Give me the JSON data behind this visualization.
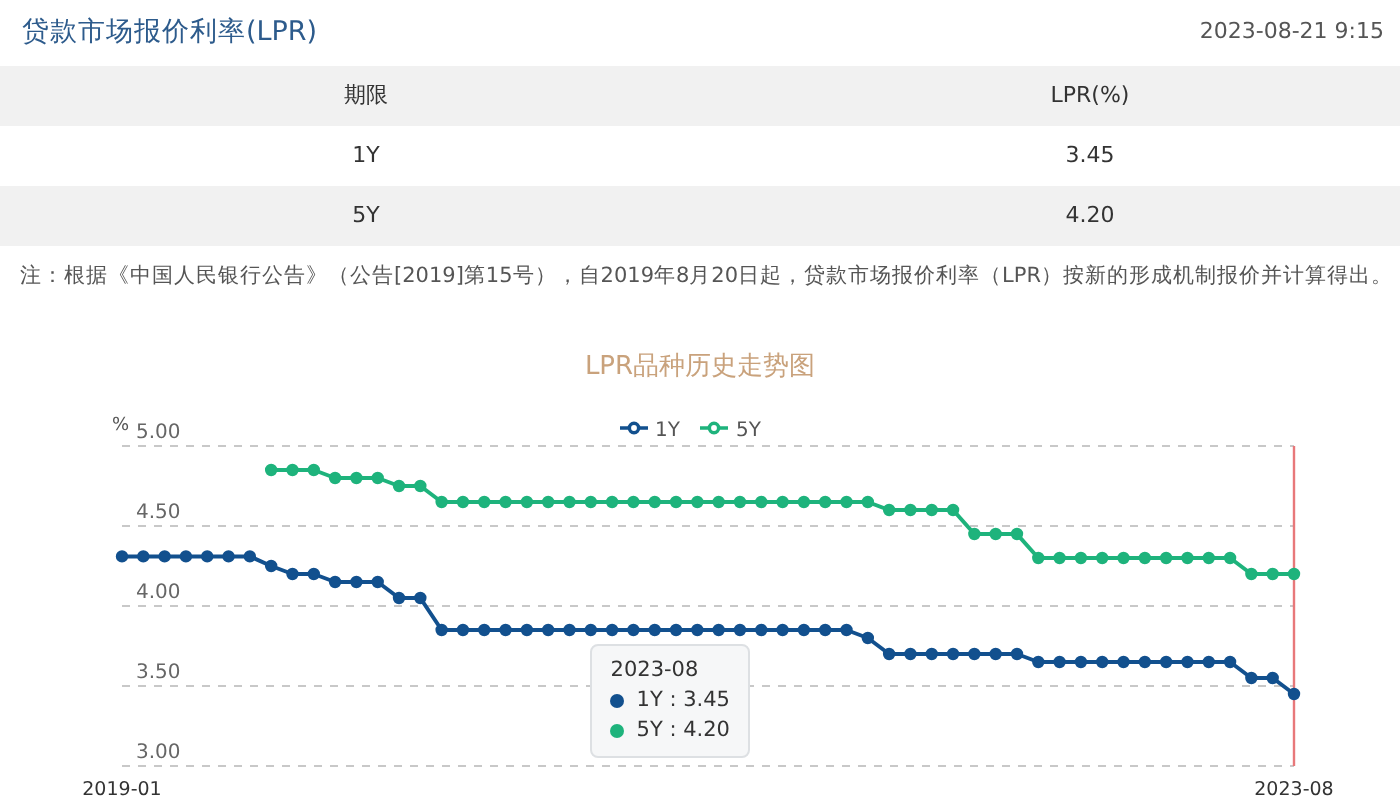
{
  "chart_data": [
    {
      "type": "other",
      "title": "贷款市场报价利率(LPR)",
      "subtitle": "2023-08-21 9:15",
      "xlabel": "期限",
      "ylabel": "LPR(%)",
      "categories": [
        "1Y",
        "5Y"
      ],
      "values": [
        3.45,
        4.2
      ],
      "value_labels": [
        "3.45",
        "4.20"
      ],
      "annotations": [
        "注：根据《中国人民银行公告》（公告[2019]第15号），自2019年8月20日起，贷款市场报价利率（LPR）按新的形成机制报价并计算得出。"
      ]
    },
    {
      "type": "line",
      "title": "LPR品种历史走势图",
      "ylabel": "%",
      "categories": [
        "2019-01",
        null,
        null,
        null,
        null,
        null,
        null,
        null,
        null,
        null,
        null,
        null,
        null,
        null,
        null,
        null,
        null,
        null,
        null,
        null,
        null,
        null,
        null,
        null,
        null,
        null,
        null,
        null,
        null,
        null,
        null,
        null,
        null,
        null,
        null,
        null,
        null,
        null,
        null,
        null,
        null,
        null,
        null,
        null,
        null,
        null,
        null,
        null,
        null,
        null,
        null,
        null,
        null,
        null,
        null,
        "2023-08"
      ],
      "series": [
        {
          "name": "1Y",
          "color": "#12508e",
          "values": [
            4.31,
            4.31,
            4.31,
            4.31,
            4.31,
            4.31,
            4.31,
            4.25,
            4.2,
            4.2,
            4.15,
            4.15,
            4.15,
            4.05,
            4.05,
            3.85,
            3.85,
            3.85,
            3.85,
            3.85,
            3.85,
            3.85,
            3.85,
            3.85,
            3.85,
            3.85,
            3.85,
            3.85,
            3.85,
            3.85,
            3.85,
            3.85,
            3.85,
            3.85,
            3.85,
            3.8,
            3.7,
            3.7,
            3.7,
            3.7,
            3.7,
            3.7,
            3.7,
            3.65,
            3.65,
            3.65,
            3.65,
            3.65,
            3.65,
            3.65,
            3.65,
            3.65,
            3.65,
            3.55,
            3.55,
            3.45
          ]
        },
        {
          "name": "5Y",
          "color": "#1eb37c",
          "values": [
            null,
            null,
            null,
            null,
            null,
            null,
            null,
            4.85,
            4.85,
            4.85,
            4.8,
            4.8,
            4.8,
            4.75,
            4.75,
            4.65,
            4.65,
            4.65,
            4.65,
            4.65,
            4.65,
            4.65,
            4.65,
            4.65,
            4.65,
            4.65,
            4.65,
            4.65,
            4.65,
            4.65,
            4.65,
            4.65,
            4.65,
            4.65,
            4.65,
            4.65,
            4.6,
            4.6,
            4.6,
            4.6,
            4.45,
            4.45,
            4.45,
            4.3,
            4.3,
            4.3,
            4.3,
            4.3,
            4.3,
            4.3,
            4.3,
            4.3,
            4.3,
            4.2,
            4.2,
            4.2
          ]
        }
      ],
      "ylim": [
        3,
        5
      ],
      "yticks": [
        {
          "value": 3,
          "label": "3.00"
        },
        {
          "value": 3.5,
          "label": "3.50"
        },
        {
          "value": 4,
          "label": "4.00"
        },
        {
          "value": 4.5,
          "label": "4.50"
        },
        {
          "value": 5,
          "label": "5.00"
        }
      ],
      "grid": "y",
      "legend": "top",
      "marker": "circle",
      "ref_lines": [
        {
          "axis": "x",
          "value": "2023-08",
          "color": "#e8787a"
        }
      ],
      "annotations": [
        "2023-08",
        "1Y : 3.45",
        "5Y : 4.20"
      ]
    }
  ]
}
